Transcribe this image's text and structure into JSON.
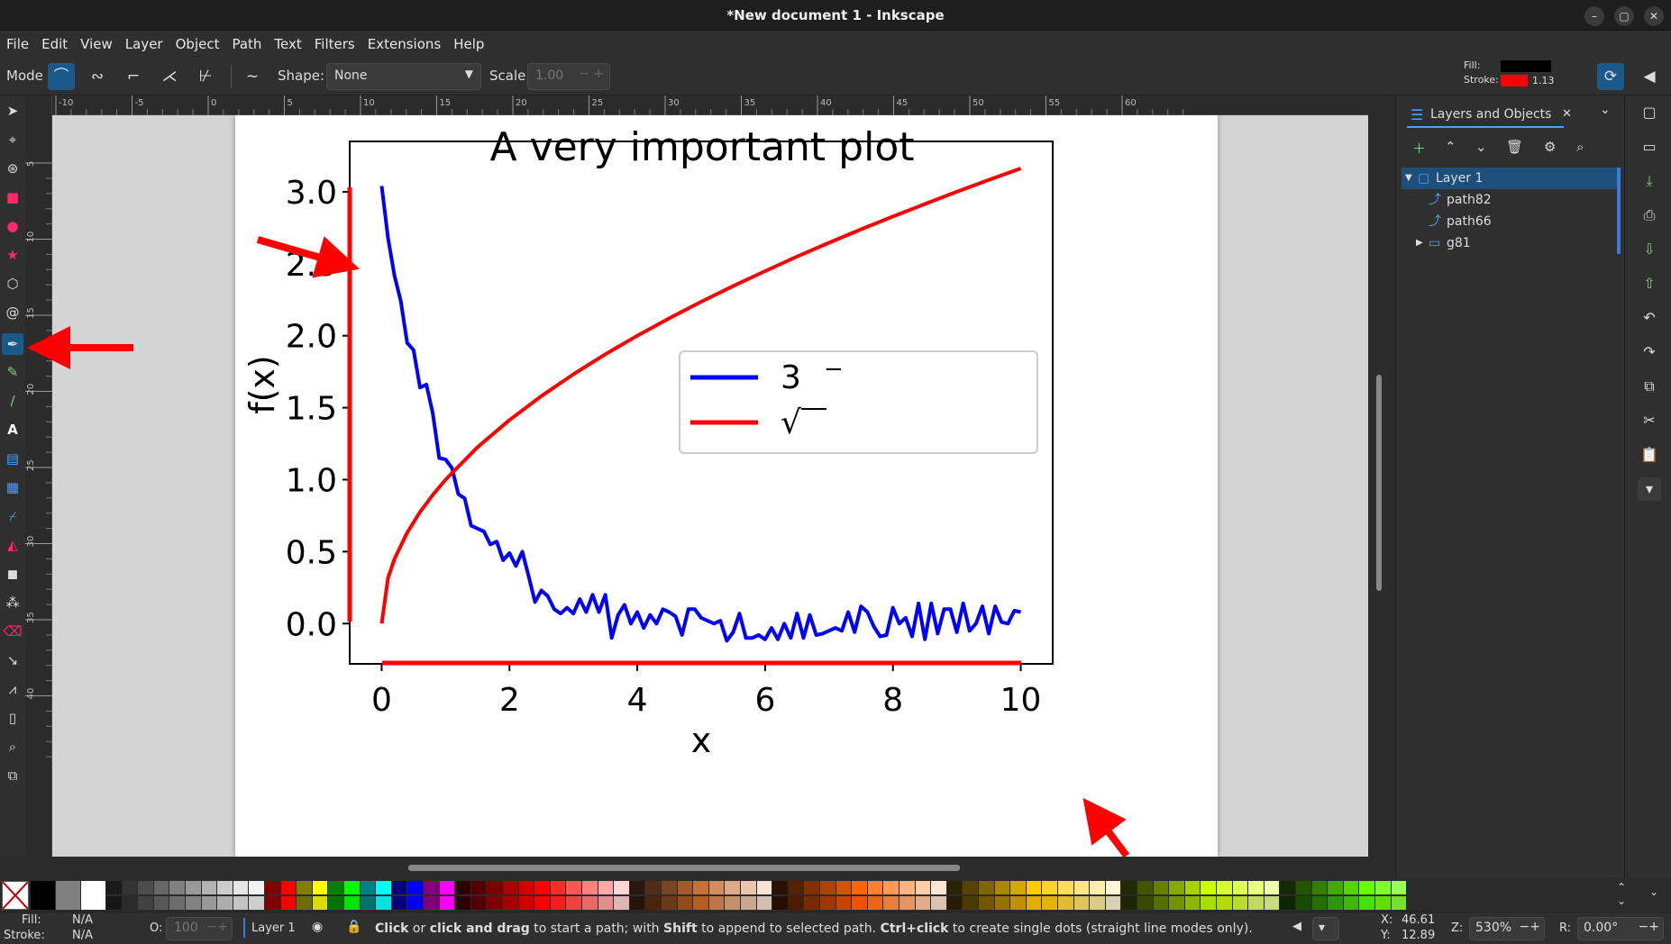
{
  "window": {
    "title": "*New document 1 - Inkscape",
    "controls": [
      "–",
      "▢",
      "✕"
    ]
  },
  "menu": [
    "File",
    "Edit",
    "View",
    "Layer",
    "Object",
    "Path",
    "Text",
    "Filters",
    "Extensions",
    "Help"
  ],
  "toolbar": {
    "mode_label": "Mode",
    "shape_label": "Shape:",
    "shape_value": "None",
    "scale_label": "Scale:",
    "scale_value": "1.00",
    "fill_label": "Fill:",
    "stroke_label": "Stroke:",
    "stroke_width": "1.13",
    "fill_color": "#000000",
    "stroke_color": "#ff0000"
  },
  "hruler_ticks": [
    "-10",
    "-5",
    "0",
    "5",
    "10",
    "15",
    "20",
    "25",
    "30",
    "35",
    "40",
    "45",
    "50",
    "55",
    "60"
  ],
  "vruler_ticks": [
    "5",
    "10",
    "15",
    "20",
    "25",
    "30",
    "35",
    "40"
  ],
  "panel": {
    "tab_title": "Layers and Objects",
    "layers": [
      {
        "name": "Layer 1",
        "type": "layer",
        "selected": true
      },
      {
        "name": "path82",
        "type": "path"
      },
      {
        "name": "path66",
        "type": "path"
      },
      {
        "name": "g81",
        "type": "group"
      }
    ]
  },
  "status": {
    "fill_label": "Fill:",
    "fill_value": "N/A",
    "stroke_label": "Stroke:",
    "stroke_value": "N/A",
    "opacity_label": "O:",
    "opacity_value": "100",
    "layer_name": "Layer 1",
    "message_parts": [
      {
        "text": "Click",
        "bold": true
      },
      {
        "text": " or ",
        "bold": false
      },
      {
        "text": "click and drag",
        "bold": true
      },
      {
        "text": " to start a path; with ",
        "bold": false
      },
      {
        "text": "Shift",
        "bold": true
      },
      {
        "text": " to append to selected path. ",
        "bold": false
      },
      {
        "text": "Ctrl+click",
        "bold": true
      },
      {
        "text": " to create single dots (straight line modes only).",
        "bold": false
      }
    ],
    "x_label": "X:",
    "x_value": "46.61",
    "y_label": "Y:",
    "y_value": "12.89",
    "zoom_label": "Z:",
    "zoom_value": "530%",
    "rotation_label": "R:",
    "rotation_value": "0.00°"
  },
  "palette_colors": [
    "#000000",
    "#808080",
    "#ffffff",
    "#1a1a1a",
    "#333333",
    "#4d4d4d",
    "#666666",
    "#808080",
    "#999999",
    "#b3b3b3",
    "#cccccc",
    "#e6e6e6",
    "#f2f2f2",
    "#800000",
    "#ff0000",
    "#808000",
    "#ffff00",
    "#008000",
    "#00ff00",
    "#008080",
    "#00ffff",
    "#000080",
    "#0000ff",
    "#800080",
    "#ff00ff",
    "#2b0000",
    "#550000",
    "#800000",
    "#aa0000",
    "#d40000",
    "#ff0000",
    "#ff2a2a",
    "#ff5555",
    "#ff8080",
    "#ffaaaa",
    "#ffd5d5",
    "#28170b",
    "#502d16",
    "#784421",
    "#a05a2c",
    "#c87137",
    "#d38d5f",
    "#deaa87",
    "#e9c6af",
    "#f4e3d7",
    "#2b1100",
    "#552200",
    "#803300",
    "#aa4400",
    "#d45500",
    "#ff6600",
    "#ff7f2a",
    "#ff9955",
    "#ffb380",
    "#ffccaa",
    "#ffe6d5",
    "#2b2200",
    "#554400",
    "#806600",
    "#aa8800",
    "#d4aa00",
    "#ffcc00",
    "#ffd42a",
    "#ffdd55",
    "#ffe680",
    "#ffeeaa",
    "#fff6d5",
    "#222b00",
    "#445500",
    "#668000",
    "#88aa00",
    "#aad400",
    "#ccff00",
    "#d4ff2a",
    "#ddff55",
    "#e5ff80",
    "#eeffaa",
    "#112b00",
    "#225500",
    "#338000",
    "#44aa00",
    "#55d400",
    "#66ff00",
    "#7fff2a",
    "#99ff55"
  ],
  "chart_data": {
    "type": "line",
    "title": "A very important plot",
    "xlabel": "x",
    "ylabel": "f(x)",
    "xlim": [
      -0.5,
      10.5
    ],
    "ylim": [
      -0.28,
      3.35
    ],
    "xticks": [
      "0",
      "2",
      "4",
      "6",
      "8",
      "10"
    ],
    "yticks": [
      "0.0",
      "0.5",
      "1.0",
      "1.5",
      "2.0",
      "2.5",
      "3.0"
    ],
    "legend_position": "center-right",
    "series": [
      {
        "name": "3",
        "legend_superscript": "−",
        "color": "#0000ff",
        "x": [
          0,
          0.1,
          0.2,
          0.3,
          0.4,
          0.5,
          0.6,
          0.7,
          0.8,
          0.9,
          1.0,
          1.1,
          1.2,
          1.3,
          1.4,
          1.5,
          1.6,
          1.7,
          1.8,
          1.9,
          2.0,
          2.1,
          2.2,
          2.3,
          2.4,
          2.5,
          2.6,
          2.7,
          2.8,
          2.9,
          3.0,
          3.1,
          3.2,
          3.3,
          3.4,
          3.5,
          3.6,
          3.7,
          3.8,
          3.9,
          4.0,
          4.1,
          4.2,
          4.3,
          4.4,
          4.5,
          4.6,
          4.7,
          4.8,
          4.9,
          5.0,
          5.1,
          5.2,
          5.3,
          5.4,
          5.5,
          5.6,
          5.7,
          5.8,
          5.9,
          6.0,
          6.1,
          6.2,
          6.3,
          6.4,
          6.5,
          6.6,
          6.7,
          6.8,
          6.9,
          7.0,
          7.1,
          7.2,
          7.3,
          7.4,
          7.5,
          7.6,
          7.7,
          7.8,
          7.9,
          8.0,
          8.1,
          8.2,
          8.3,
          8.4,
          8.5,
          8.6,
          8.7,
          8.8,
          8.9,
          9.0,
          9.1,
          9.2,
          9.3,
          9.4,
          9.5,
          9.6,
          9.7,
          9.8,
          9.9,
          10.0
        ],
        "y": [
          3.04,
          2.68,
          2.42,
          2.24,
          1.95,
          1.9,
          1.64,
          1.66,
          1.46,
          1.15,
          1.14,
          1.08,
          0.9,
          0.87,
          0.68,
          0.66,
          0.64,
          0.55,
          0.57,
          0.44,
          0.49,
          0.4,
          0.5,
          0.33,
          0.15,
          0.23,
          0.19,
          0.1,
          0.07,
          0.11,
          0.07,
          0.17,
          0.08,
          0.2,
          0.08,
          0.2,
          -0.1,
          0.06,
          0.13,
          0.0,
          0.08,
          -0.03,
          0.06,
          0.0,
          0.1,
          0.08,
          0.05,
          -0.08,
          0.1,
          0.1,
          0.04,
          0.02,
          0.0,
          0.02,
          -0.12,
          -0.06,
          0.07,
          -0.1,
          -0.1,
          -0.08,
          -0.11,
          -0.03,
          -0.11,
          0.0,
          -0.1,
          0.07,
          -0.1,
          0.06,
          -0.08,
          -0.07,
          -0.05,
          -0.03,
          -0.05,
          0.08,
          -0.06,
          0.12,
          0.08,
          -0.02,
          -0.09,
          -0.08,
          0.11,
          0.0,
          0.04,
          -0.09,
          0.14,
          -0.11,
          0.14,
          -0.07,
          0.1,
          0.1,
          -0.06,
          0.14,
          -0.05,
          0.0,
          0.12,
          -0.07,
          0.12,
          0.01,
          0.0,
          0.09,
          0.08
        ]
      },
      {
        "name": "√",
        "color": "#ff0000",
        "x": [
          0,
          0.1,
          0.2,
          0.4,
          0.6,
          0.8,
          1.0,
          1.5,
          2.0,
          2.5,
          3.0,
          3.5,
          4.0,
          4.5,
          5.0,
          5.5,
          6.0,
          6.5,
          7.0,
          7.5,
          8.0,
          8.5,
          9.0,
          9.5,
          10.0
        ],
        "y": [
          0.0,
          0.316,
          0.447,
          0.632,
          0.775,
          0.894,
          1.0,
          1.225,
          1.414,
          1.581,
          1.732,
          1.871,
          2.0,
          2.121,
          2.236,
          2.345,
          2.449,
          2.55,
          2.646,
          2.739,
          2.828,
          2.915,
          3.0,
          3.082,
          3.162
        ]
      }
    ]
  }
}
